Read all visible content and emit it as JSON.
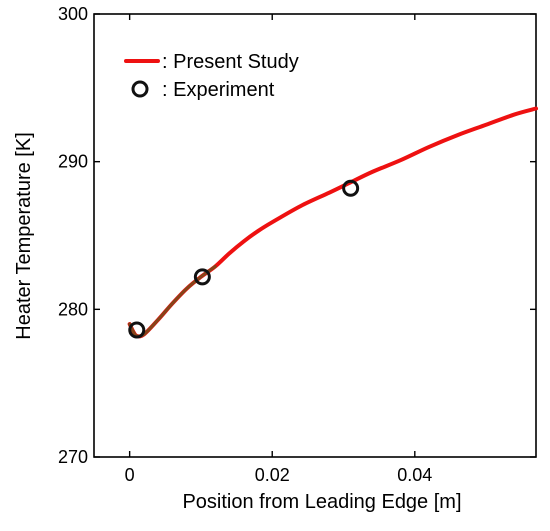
{
  "chart_data": {
    "type": "line",
    "title": "",
    "xlabel": "Position from Leading Edge [m]",
    "ylabel": "Heater Temperature [K]",
    "xlim": [
      -0.005,
      0.057
    ],
    "ylim": [
      270,
      300
    ],
    "x_ticks": [
      0,
      0.02,
      0.04
    ],
    "x_tick_labels": [
      "0",
      "0.02",
      "0.04"
    ],
    "y_ticks": [
      270,
      280,
      290,
      300
    ],
    "y_tick_labels": [
      "270",
      "280",
      "290",
      "300"
    ],
    "grid": false,
    "legend_position": "top-left",
    "series": [
      {
        "name": "Present Study",
        "kind": "line",
        "color": "#ee1111",
        "x": [
          0.0,
          0.0005,
          0.001,
          0.002,
          0.004,
          0.006,
          0.008,
          0.01,
          0.012,
          0.014,
          0.016,
          0.018,
          0.02,
          0.024,
          0.028,
          0.031,
          0.034,
          0.038,
          0.042,
          0.046,
          0.05,
          0.054,
          0.057
        ],
        "y": [
          279.0,
          278.5,
          278.2,
          278.3,
          279.3,
          280.4,
          281.4,
          282.2,
          282.9,
          283.8,
          284.6,
          285.3,
          285.9,
          287.0,
          287.9,
          288.6,
          289.3,
          290.1,
          291.0,
          291.8,
          292.5,
          293.2,
          293.6
        ]
      },
      {
        "name": "Experiment",
        "kind": "marker",
        "marker": "open-circle",
        "color": "#111111",
        "x": [
          0.001,
          0.0102,
          0.031
        ],
        "y": [
          278.6,
          282.2,
          288.2
        ]
      }
    ],
    "overlay_segment": {
      "color": "#7a4a1a",
      "x": [
        0.0,
        0.0005,
        0.001,
        0.002,
        0.004,
        0.006,
        0.008,
        0.01,
        0.012
      ],
      "y": [
        279.0,
        278.5,
        278.2,
        278.3,
        279.3,
        280.4,
        281.4,
        282.2,
        282.9
      ]
    },
    "legend": [
      {
        "label": ": Present Study",
        "symbol": "line",
        "color": "#ee1111"
      },
      {
        "label": ": Experiment",
        "symbol": "open-circle",
        "color": "#111111"
      }
    ]
  }
}
